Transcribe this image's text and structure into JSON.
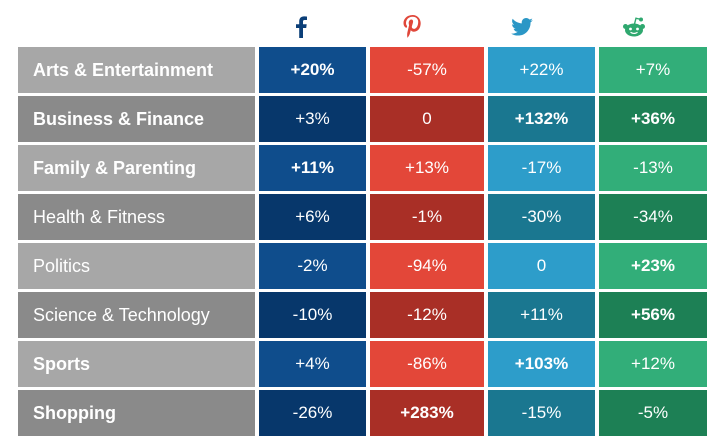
{
  "chart_data": {
    "type": "table",
    "columns": [
      {
        "name": "facebook",
        "icon": "facebook-icon",
        "colors": [
          "#0f4d8c",
          "#07376b"
        ]
      },
      {
        "name": "pinterest",
        "icon": "pinterest-icon",
        "colors": [
          "#e34739",
          "#a92f26"
        ]
      },
      {
        "name": "twitter",
        "icon": "twitter-icon",
        "colors": [
          "#2d9dca",
          "#1a7790"
        ]
      },
      {
        "name": "reddit",
        "icon": "reddit-icon",
        "colors": [
          "#32ae79",
          "#1d8055"
        ]
      }
    ],
    "row_label_colors": [
      "#a7a7a7",
      "#8a8a8a"
    ],
    "rows": [
      {
        "label": "Arts & Entertainment",
        "bold": true,
        "values": [
          "+20%",
          "-57%",
          "+22%",
          "+7%"
        ],
        "bold_values": [
          true,
          false,
          false,
          false
        ]
      },
      {
        "label": "Business & Finance",
        "bold": true,
        "values": [
          "+3%",
          "0",
          "+132%",
          "+36%"
        ],
        "bold_values": [
          false,
          false,
          true,
          true
        ]
      },
      {
        "label": "Family & Parenting",
        "bold": true,
        "values": [
          "+11%",
          "+13%",
          "-17%",
          "-13%"
        ],
        "bold_values": [
          true,
          false,
          false,
          false
        ]
      },
      {
        "label": "Health & Fitness",
        "bold": false,
        "values": [
          "+6%",
          "-1%",
          "-30%",
          "-34%"
        ],
        "bold_values": [
          false,
          false,
          false,
          false
        ]
      },
      {
        "label": "Politics",
        "bold": false,
        "values": [
          "-2%",
          "-94%",
          "0",
          "+23%"
        ],
        "bold_values": [
          false,
          false,
          false,
          true
        ]
      },
      {
        "label": "Science & Technology",
        "bold": false,
        "values": [
          "-10%",
          "-12%",
          "+11%",
          "+56%"
        ],
        "bold_values": [
          false,
          false,
          false,
          true
        ]
      },
      {
        "label": "Sports",
        "bold": true,
        "values": [
          "+4%",
          "-86%",
          "+103%",
          "+12%"
        ],
        "bold_values": [
          false,
          false,
          true,
          false
        ]
      },
      {
        "label": "Shopping",
        "bold": true,
        "values": [
          "-26%",
          "+283%",
          "-15%",
          "-5%"
        ],
        "bold_values": [
          false,
          true,
          false,
          false
        ]
      }
    ]
  }
}
